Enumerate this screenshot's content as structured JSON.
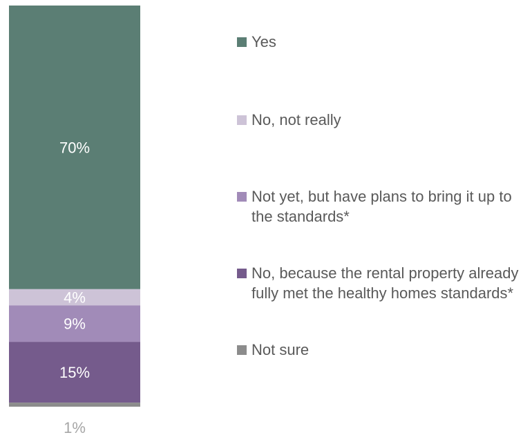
{
  "chart_data": {
    "type": "bar",
    "stacked": true,
    "orientation": "vertical",
    "unit": "%",
    "series": [
      {
        "name": "Yes",
        "value": 70,
        "label": "70%",
        "color": "#5B7E74"
      },
      {
        "name": "No, not really",
        "value": 4,
        "label": "4%",
        "color": "#CDC3D7"
      },
      {
        "name": "Not yet, but have plans to bring it up to the standards*",
        "value": 9,
        "label": "9%",
        "color": "#A18BB8"
      },
      {
        "name": "No, because the rental property already fully met the healthy homes standards*",
        "value": 15,
        "label": "15%",
        "color": "#755B8C"
      },
      {
        "name": "Not sure",
        "value": 1,
        "label": "1%",
        "color": "#8C8C8C"
      }
    ],
    "legend_position": "right",
    "grid": false,
    "label_colors": {
      "inside": "#ffffff",
      "outside": "#A6A6A6",
      "legend_text": "#595959"
    }
  }
}
